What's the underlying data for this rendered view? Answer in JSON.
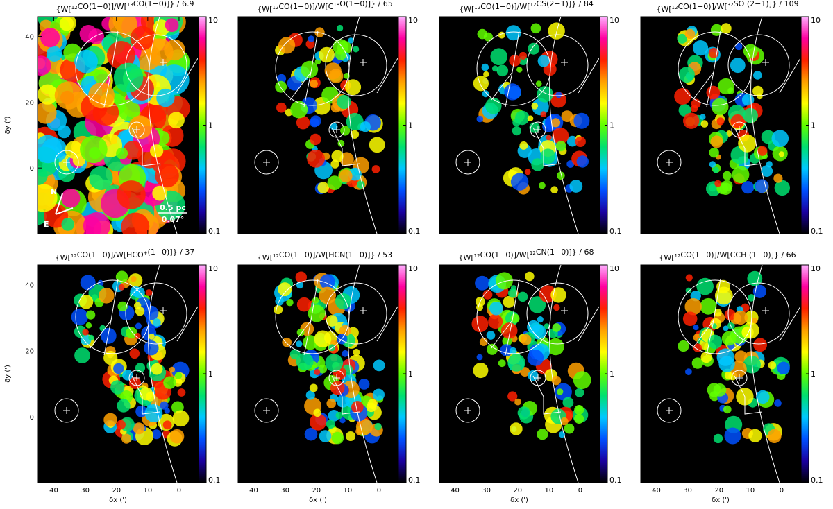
{
  "figure": {
    "x_axis_label": "δx (')",
    "y_axis_label": "δy (')",
    "x_ticks": [
      "40",
      "30",
      "20",
      "10",
      "0"
    ],
    "y_ticks": [
      "40",
      "20",
      "0"
    ],
    "colorbar_ticks": [
      "10",
      "1",
      "0.1"
    ],
    "scale_bar_pc": "0.5 pc",
    "scale_bar_deg": "0.07°",
    "compass_north": "N",
    "compass_east": "E"
  },
  "panels": [
    {
      "title_prefix": "{W[",
      "iso1": "12",
      "mol1": "CO(1−0)]/W[",
      "iso2": "13",
      "mol2": "CO(1−0)]}",
      "divisor": " / 6.9"
    },
    {
      "title_prefix": "{W[",
      "iso1": "12",
      "mol1": "CO(1−0)]/W[C",
      "iso2": "18",
      "mol2": "O(1−0)]}",
      "divisor": " / 65"
    },
    {
      "title_prefix": "{W[",
      "iso1": "12",
      "mol1": "CO(1−0)]/W[",
      "iso2": "12",
      "mol2": "CS(2−1)]}",
      "divisor": " / 84"
    },
    {
      "title_prefix": "{W[",
      "iso1": "12",
      "mol1": "CO(1−0)]/W[",
      "iso2": "32",
      "mol2": "SO (2−1)]}",
      "divisor": " / 109"
    },
    {
      "title_prefix": "{W[",
      "iso1": "12",
      "mol1": "CO(1−0)]/W[HCO",
      "iso2": "+",
      "mol2": "(1−0)]}",
      "divisor": " / 37"
    },
    {
      "title_prefix": "{W[",
      "iso1": "12",
      "mol1": "CO(1−0)]/W[HCN(1−0)]}",
      "iso2": "",
      "mol2": "",
      "divisor": " / 53"
    },
    {
      "title_prefix": "{W[",
      "iso1": "12",
      "mol1": "CO(1−0)]/W[",
      "iso2": "12",
      "mol2": "CN(1−0)]}",
      "divisor": " / 68"
    },
    {
      "title_prefix": "{W[",
      "iso1": "12",
      "mol1": "CO(1−0)]/W[CCH (1−0)]}",
      "iso2": "",
      "mol2": "",
      "divisor": " / 66"
    }
  ],
  "colors": {
    "background": "#000000",
    "overlay": "#ffffff",
    "colormap": [
      "#000000",
      "#1a00a0",
      "#0050ff",
      "#00c8ff",
      "#00e070",
      "#60ff00",
      "#ffff00",
      "#ffa000",
      "#ff2000",
      "#ff00a0",
      "#ffb0ff"
    ]
  }
}
